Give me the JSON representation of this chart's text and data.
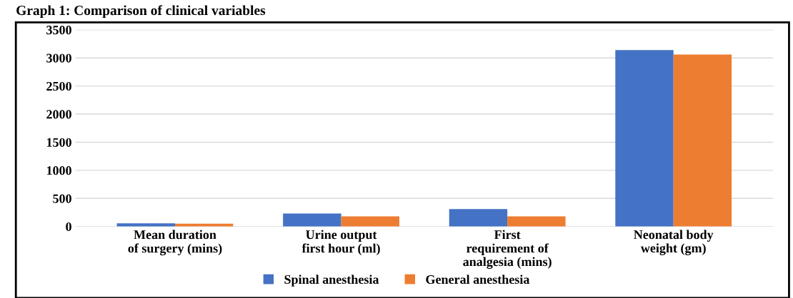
{
  "chart_data": {
    "type": "bar",
    "title": "Graph 1: Comparison of clinical variables",
    "categories": [
      "Mean duration\nof surgery (mins)",
      "Urine output\nfirst hour (ml)",
      "First\nrequirement of\nanalgesia (mins)",
      "Neonatal body\nweight (gm)"
    ],
    "series": [
      {
        "name": "Spinal anesthesia",
        "color": "#4472c4",
        "values": [
          55,
          230,
          310,
          3140
        ]
      },
      {
        "name": "General anesthesia",
        "color": "#ed7d31",
        "values": [
          50,
          180,
          180,
          3060
        ]
      }
    ],
    "ylim": [
      0,
      3500
    ],
    "yticks": [
      0,
      500,
      1000,
      1500,
      2000,
      2500,
      3000,
      3500
    ],
    "grid": "y",
    "legend": "bottom"
  }
}
